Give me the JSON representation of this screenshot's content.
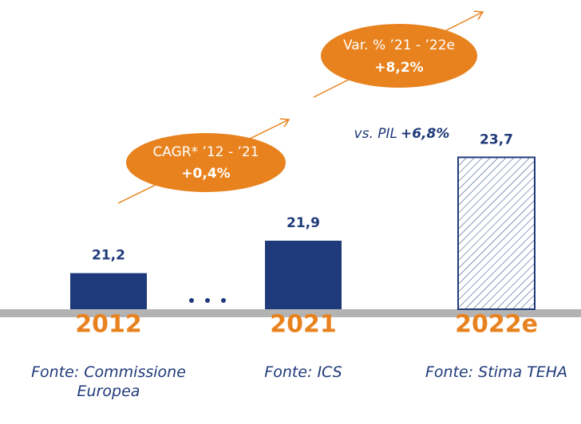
{
  "chart_data": {
    "type": "bar",
    "categories": [
      "2012",
      "2021",
      "2022e"
    ],
    "values": [
      21.2,
      21.9,
      23.7
    ],
    "value_labels": [
      "21,2",
      "21,9",
      "23,7"
    ],
    "sources": [
      "Fonte: Commissione Europea",
      "Fonte: ICS",
      "Fonte: Stima TEHA"
    ],
    "patterns": [
      "solid",
      "solid",
      "hatched"
    ],
    "color": "#1f3a7a",
    "ylim": [
      20.42,
      24
    ],
    "annotations": [
      {
        "text": "CAGR* ’12 - ’21",
        "value": "+0,4%"
      },
      {
        "text": "Var. % ’21 - ’22e",
        "value": "+8,2%"
      },
      {
        "text": "vs. PIL",
        "value": "+6,8%"
      }
    ]
  }
}
